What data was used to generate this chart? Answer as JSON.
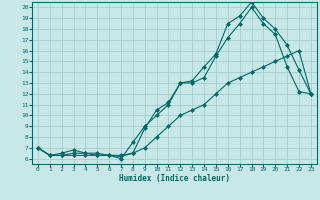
{
  "xlabel": "Humidex (Indice chaleur)",
  "bg_color": "#c8e8e8",
  "grid_color": "#a0c8c8",
  "line_color": "#006868",
  "xlim": [
    -0.5,
    23.5
  ],
  "ylim": [
    5.5,
    20.5
  ],
  "xticks": [
    0,
    1,
    2,
    3,
    4,
    5,
    6,
    7,
    8,
    9,
    10,
    11,
    12,
    13,
    14,
    15,
    16,
    17,
    18,
    19,
    20,
    21,
    22,
    23
  ],
  "yticks": [
    6,
    7,
    8,
    9,
    10,
    11,
    12,
    13,
    14,
    15,
    16,
    17,
    18,
    19,
    20
  ],
  "line1_x": [
    0,
    1,
    2,
    3,
    4,
    5,
    6,
    7,
    8,
    9,
    10,
    11,
    12,
    13,
    14,
    15,
    16,
    17,
    18,
    19,
    20,
    21,
    22,
    23
  ],
  "line1_y": [
    7.0,
    6.3,
    6.3,
    6.5,
    6.5,
    6.3,
    6.3,
    6.0,
    7.5,
    9.0,
    10.0,
    11.0,
    13.0,
    13.0,
    13.5,
    15.5,
    17.2,
    18.5,
    20.0,
    18.5,
    17.5,
    14.5,
    12.2,
    12.0
  ],
  "line2_x": [
    0,
    1,
    2,
    3,
    4,
    5,
    6,
    7,
    8,
    9,
    10,
    11,
    12,
    13,
    14,
    15,
    16,
    17,
    18,
    19,
    20,
    21,
    22,
    23
  ],
  "line2_y": [
    7.0,
    6.3,
    6.5,
    6.8,
    6.5,
    6.5,
    6.3,
    6.2,
    6.5,
    8.8,
    10.5,
    11.2,
    13.0,
    13.2,
    14.5,
    15.7,
    18.5,
    19.2,
    20.5,
    19.0,
    18.0,
    16.5,
    14.2,
    12.0
  ],
  "line3_x": [
    0,
    1,
    2,
    3,
    4,
    5,
    6,
    7,
    8,
    9,
    10,
    11,
    12,
    13,
    14,
    15,
    16,
    17,
    18,
    19,
    20,
    21,
    22,
    23
  ],
  "line3_y": [
    7.0,
    6.3,
    6.3,
    6.3,
    6.3,
    6.3,
    6.3,
    6.3,
    6.5,
    7.0,
    8.0,
    9.0,
    10.0,
    10.5,
    11.0,
    12.0,
    13.0,
    13.5,
    14.0,
    14.5,
    15.0,
    15.5,
    16.0,
    12.0
  ]
}
